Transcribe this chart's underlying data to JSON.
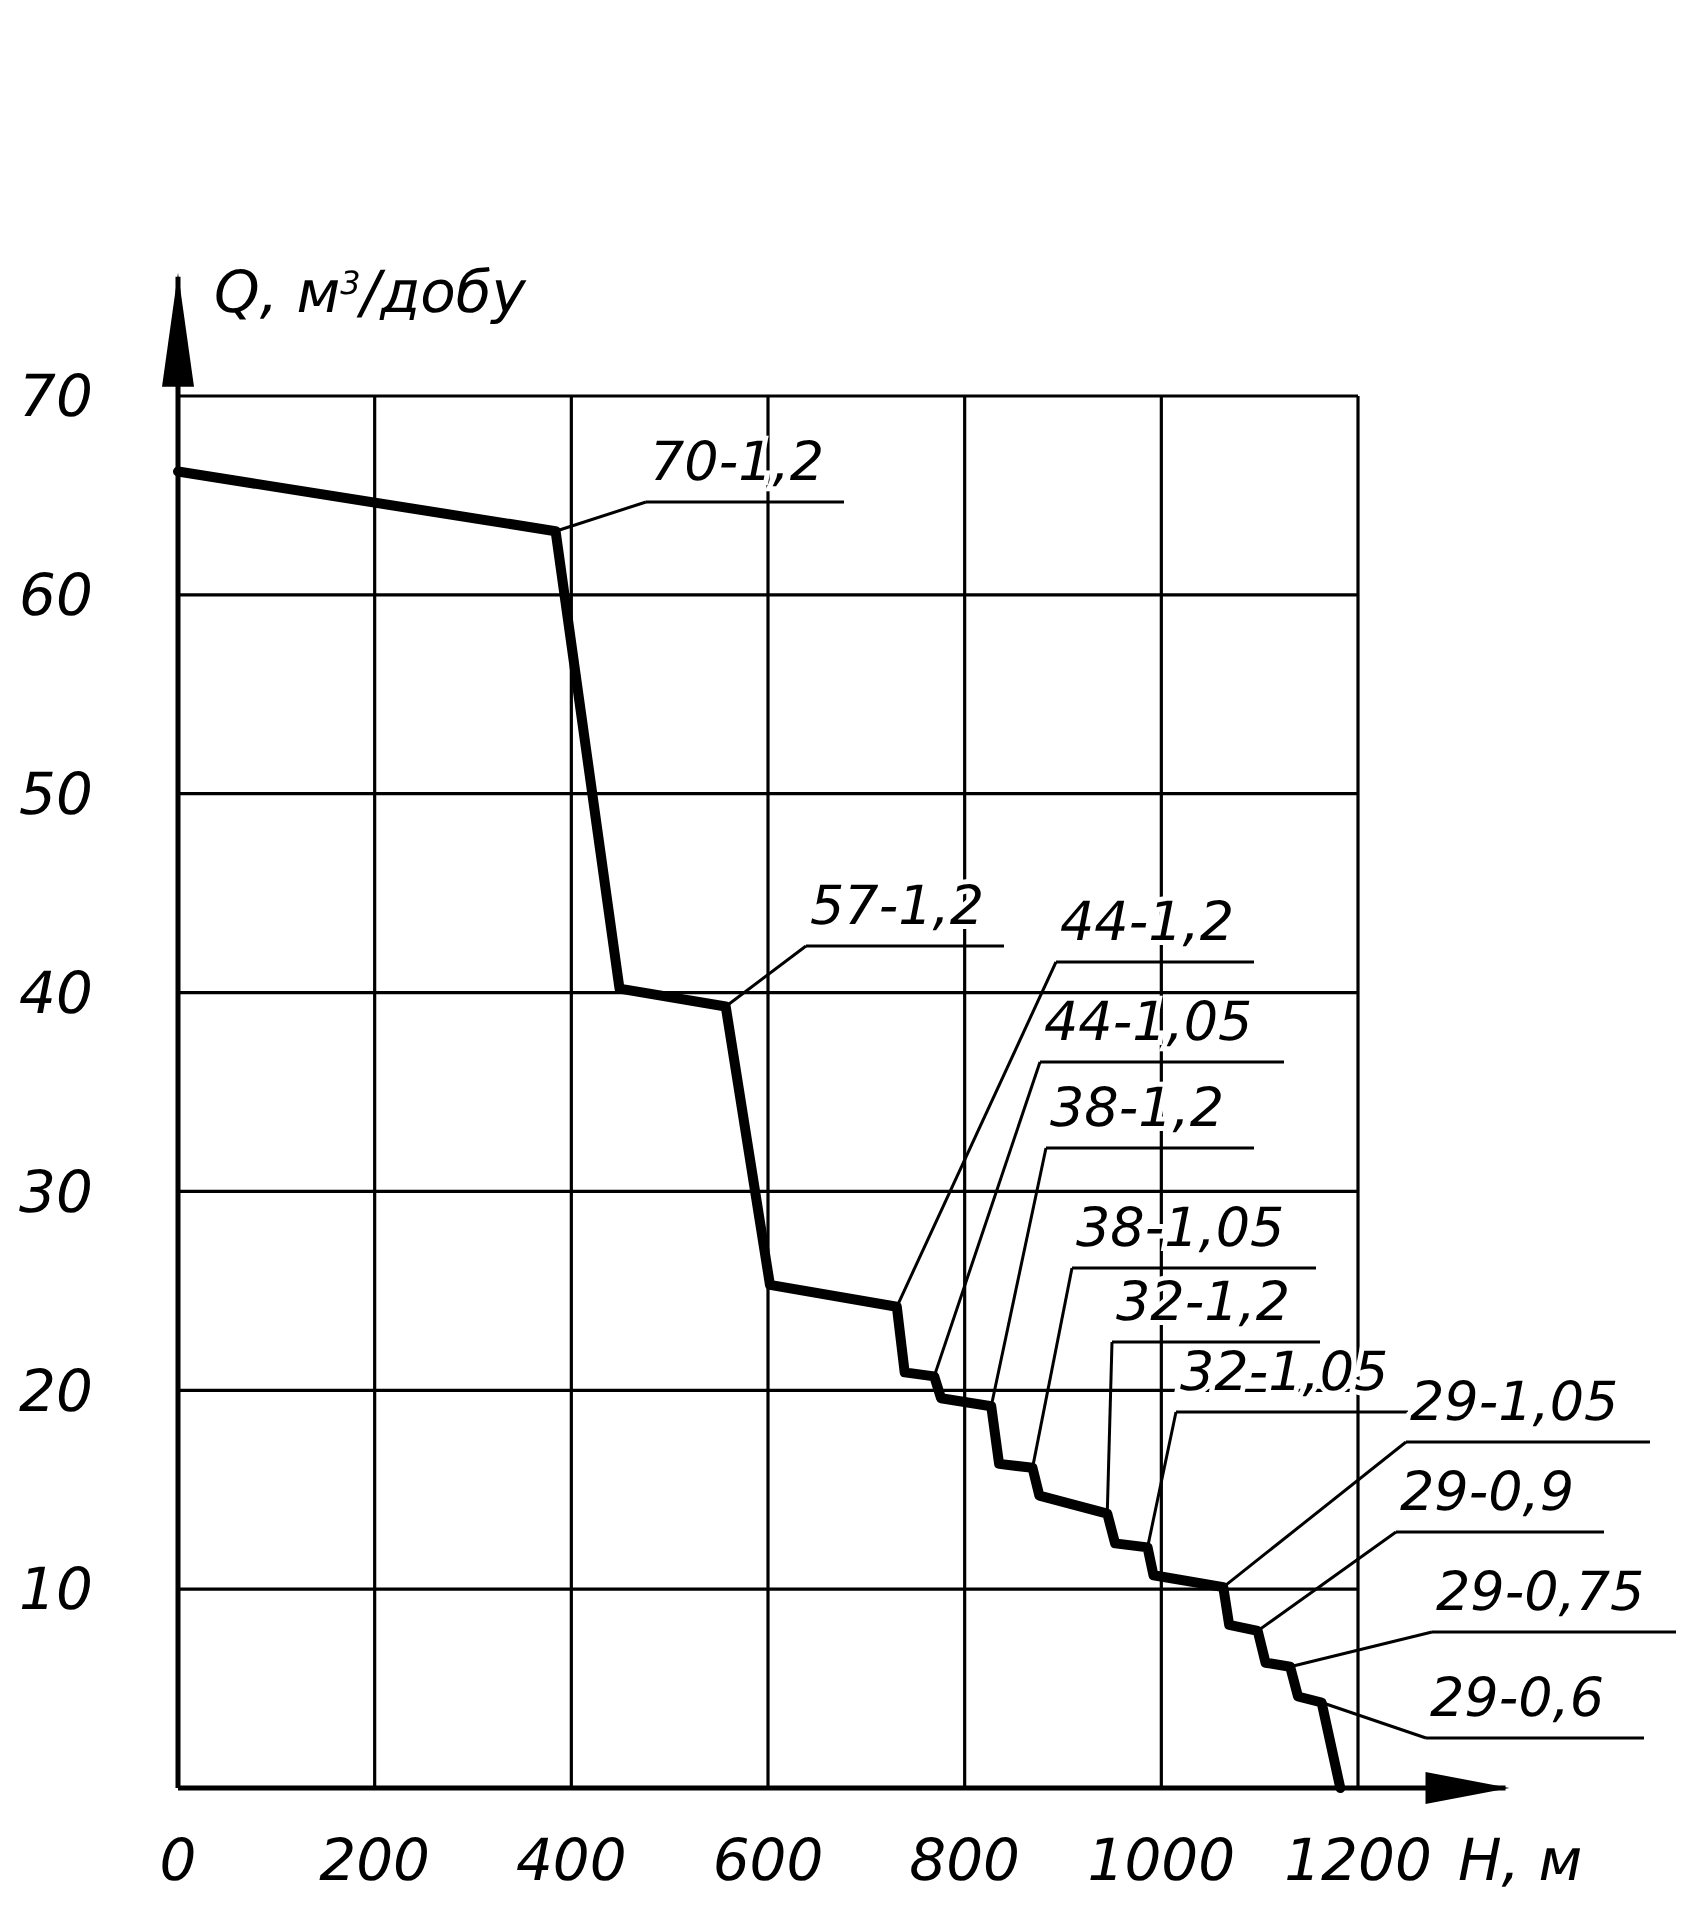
{
  "chart_data": {
    "type": "line",
    "xlabel": "H, м",
    "ylabel": "Q, м$^{3}$/добу",
    "xlim": [
      0,
      1350
    ],
    "ylim": [
      0,
      76
    ],
    "xticks": [
      {
        "value": 0,
        "label": "0"
      },
      200,
      400,
      600,
      800,
      1000,
      1200
    ],
    "yticks": [
      10,
      20,
      30,
      40,
      50,
      60,
      70
    ],
    "grid": true,
    "marker": "none",
    "line_style": "solid",
    "series": [
      {
        "color": "#000000",
        "x": [
          0,
          384,
          449,
          557,
          602,
          731,
          739,
          769,
          776,
          827,
          835,
          869,
          876,
          945,
          953,
          986,
          992,
          1063,
          1069,
          1098,
          1106,
          1131,
          1139,
          1163,
          1182
        ],
        "values": [
          66.2,
          63.2,
          40.2,
          39.3,
          25.3,
          24.2,
          20.9,
          20.7,
          19.6,
          19.2,
          16.3,
          16.1,
          14.7,
          13.8,
          12.3,
          12.1,
          10.7,
          10.1,
          8.2,
          7.9,
          6.3,
          6.1,
          4.6,
          4.3,
          0
        ]
      }
    ],
    "annotations": [
      {
        "text": "70-1,2",
        "x": 384,
        "y": 63.2
      },
      {
        "text": "57-1,2",
        "x": 557,
        "y": 39.3
      },
      {
        "text": "44-1,2",
        "x": 731,
        "y": 24.2
      },
      {
        "text": "44-1,05",
        "x": 769,
        "y": 20.7
      },
      {
        "text": "38-1,2",
        "x": 827,
        "y": 19.2
      },
      {
        "text": "38-1,05",
        "x": 869,
        "y": 16.1
      },
      {
        "text": "32-1,2",
        "x": 945,
        "y": 13.8
      },
      {
        "text": "32-1,05",
        "x": 986,
        "y": 12.1
      },
      {
        "text": "29-1,05",
        "x": 1063,
        "y": 10.1
      },
      {
        "text": "29-0,9",
        "x": 1098,
        "y": 7.9
      },
      {
        "text": "29-0,75",
        "x": 1131,
        "y": 6.1
      },
      {
        "text": "29-0,6",
        "x": 1163,
        "y": 4.3
      }
    ]
  }
}
